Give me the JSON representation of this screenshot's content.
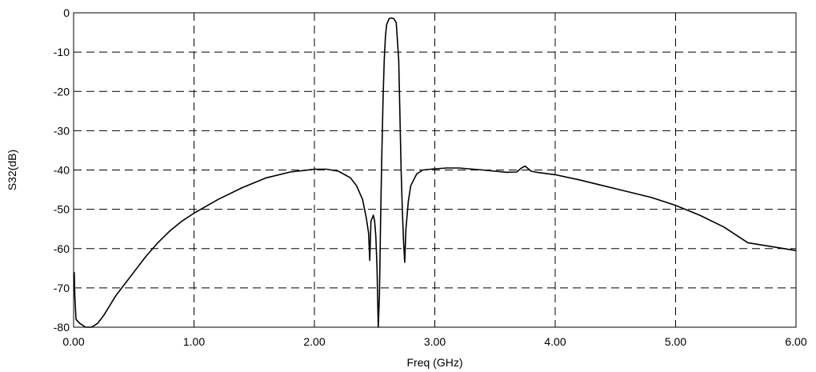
{
  "chart_data": {
    "type": "line",
    "xlabel": "Freq (GHz)",
    "ylabel": "S32(dB)",
    "xlim": [
      0,
      6
    ],
    "ylim": [
      -80,
      0
    ],
    "grid": true,
    "grid_style": "dashed",
    "x_ticks": [
      {
        "value": 0,
        "label": "0.00"
      },
      {
        "value": 1,
        "label": "1.00"
      },
      {
        "value": 2,
        "label": "2.00"
      },
      {
        "value": 3,
        "label": "3.00"
      },
      {
        "value": 4,
        "label": "4.00"
      },
      {
        "value": 5,
        "label": "5.00"
      },
      {
        "value": 6,
        "label": "6.00"
      }
    ],
    "y_ticks": [
      {
        "value": 0,
        "label": "0"
      },
      {
        "value": -10,
        "label": "-10"
      },
      {
        "value": -20,
        "label": "-20"
      },
      {
        "value": -30,
        "label": "-30"
      },
      {
        "value": -40,
        "label": "-40"
      },
      {
        "value": -50,
        "label": "-50"
      },
      {
        "value": -60,
        "label": "-60"
      },
      {
        "value": -70,
        "label": "-70"
      },
      {
        "value": -80,
        "label": "-80"
      }
    ],
    "series": [
      {
        "color": "#000000",
        "x": [
          0.005,
          0.01,
          0.02,
          0.05,
          0.1,
          0.15,
          0.2,
          0.25,
          0.3,
          0.35,
          0.4,
          0.5,
          0.6,
          0.7,
          0.8,
          0.9,
          1.0,
          1.2,
          1.4,
          1.6,
          1.8,
          2.0,
          2.1,
          2.2,
          2.3,
          2.35,
          2.4,
          2.43,
          2.45,
          2.46,
          2.47,
          2.49,
          2.5,
          2.51,
          2.52,
          2.53,
          2.54,
          2.55,
          2.56,
          2.57,
          2.58,
          2.59,
          2.6,
          2.62,
          2.64,
          2.66,
          2.68,
          2.7,
          2.71,
          2.72,
          2.73,
          2.74,
          2.75,
          2.76,
          2.78,
          2.8,
          2.85,
          2.9,
          3.0,
          3.1,
          3.2,
          3.4,
          3.6,
          3.68,
          3.72,
          3.75,
          3.78,
          3.8,
          3.85,
          4.0,
          4.2,
          4.4,
          4.6,
          4.8,
          5.0,
          5.2,
          5.4,
          5.5,
          5.6,
          5.8,
          6.0
        ],
        "values": [
          -66,
          -72,
          -78,
          -79,
          -80,
          -80,
          -79,
          -77,
          -74.5,
          -72,
          -70,
          -66,
          -62,
          -58.5,
          -55.5,
          -53,
          -51,
          -47.5,
          -44.5,
          -42,
          -40.5,
          -39.8,
          -39.8,
          -40.3,
          -42,
          -44,
          -47.5,
          -52,
          -56,
          -63,
          -53,
          -51.5,
          -53,
          -57,
          -65,
          -80,
          -72,
          -52,
          -36,
          -22,
          -12,
          -6,
          -3,
          -1.5,
          -1.3,
          -1.5,
          -2.5,
          -12,
          -26,
          -40,
          -50,
          -58,
          -63.5,
          -55,
          -48,
          -44,
          -41,
          -40,
          -39.7,
          -39.5,
          -39.5,
          -40,
          -40.6,
          -40.5,
          -39.5,
          -39,
          -39.8,
          -40.3,
          -40.6,
          -41.2,
          -42.5,
          -44,
          -45.5,
          -47,
          -49,
          -51.5,
          -54.5,
          -56.5,
          -58.5,
          -59.5,
          -60.5
        ]
      }
    ]
  }
}
